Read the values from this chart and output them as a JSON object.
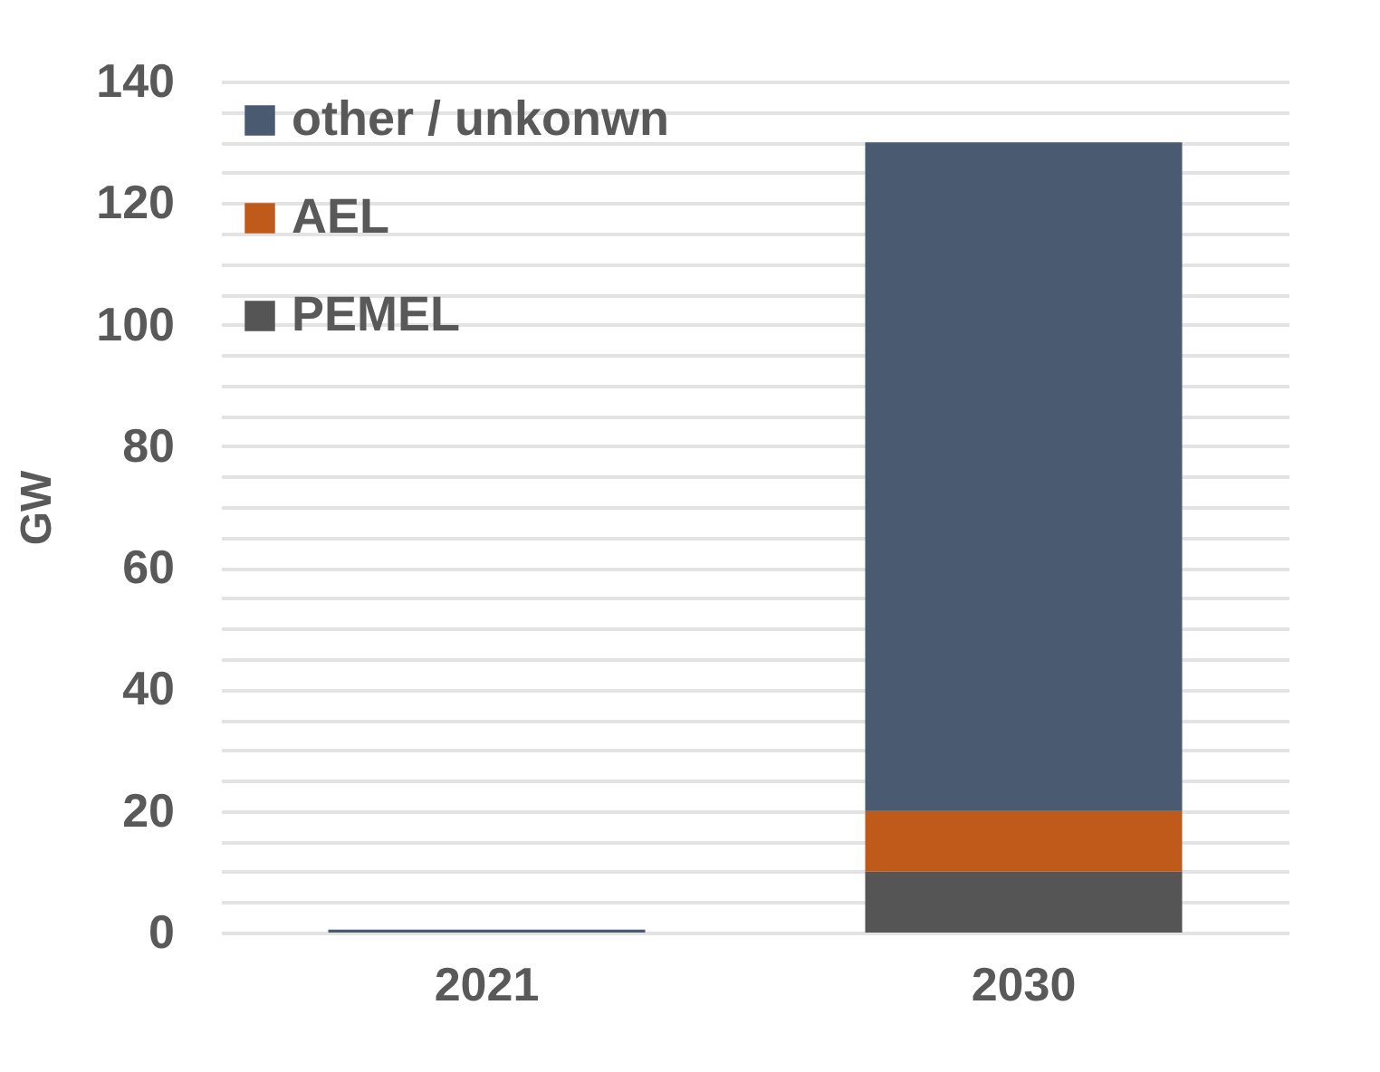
{
  "chart_data": {
    "type": "bar",
    "stacked": true,
    "ylabel": "GW",
    "categories": [
      "2021",
      "2030"
    ],
    "series": [
      {
        "name": "PEMEL",
        "color": "#555555",
        "values": [
          0,
          10
        ]
      },
      {
        "name": "AEL",
        "color": "#c05a1a",
        "values": [
          0,
          10
        ]
      },
      {
        "name": "other / unkonwn",
        "color": "#4a5a70",
        "values": [
          0.5,
          110
        ]
      }
    ],
    "ylim": [
      0,
      140
    ],
    "yticks": [
      0,
      {
        "value": 5,
        "label": null
      },
      {
        "value": 10,
        "label": null
      },
      {
        "value": 15,
        "label": null
      },
      20,
      {
        "value": 25,
        "label": null
      },
      {
        "value": 30,
        "label": null
      },
      {
        "value": 35,
        "label": null
      },
      40,
      {
        "value": 45,
        "label": null
      },
      {
        "value": 50,
        "label": null
      },
      {
        "value": 55,
        "label": null
      },
      60,
      {
        "value": 65,
        "label": null
      },
      {
        "value": 70,
        "label": null
      },
      {
        "value": 75,
        "label": null
      },
      80,
      {
        "value": 85,
        "label": null
      },
      {
        "value": 90,
        "label": null
      },
      {
        "value": 95,
        "label": null
      },
      100,
      {
        "value": 105,
        "label": null
      },
      {
        "value": 110,
        "label": null
      },
      {
        "value": 115,
        "label": null
      },
      120,
      {
        "value": 125,
        "label": null
      },
      {
        "value": 130,
        "label": null
      },
      {
        "value": 135,
        "label": null
      },
      140
    ],
    "grid": true,
    "legend": "top left"
  }
}
